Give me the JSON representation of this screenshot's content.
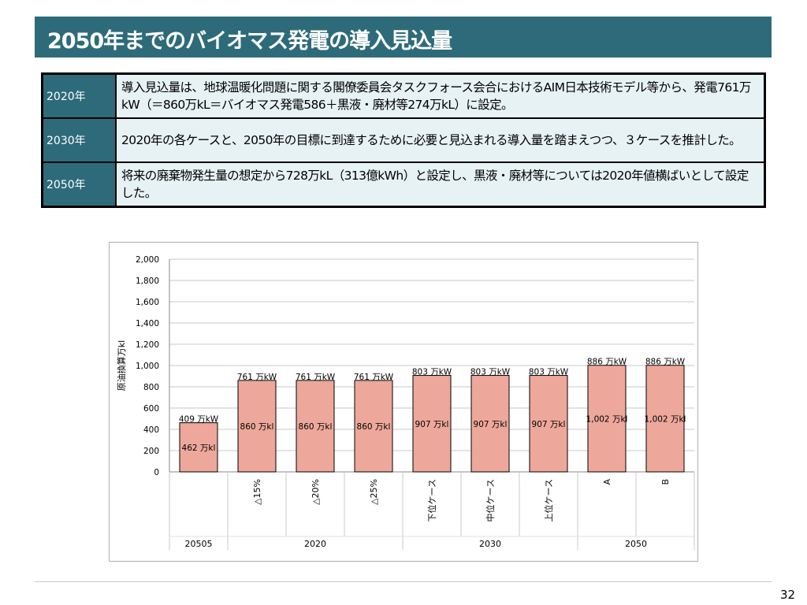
{
  "title": "2050年までのバイオマス発電の導入見込量",
  "summary": [
    {
      "year": "2020年",
      "text": "導入見込量は、地球温暖化問題に関する閣僚委員会タスクフォース会合におけるAIM日本技術モデル等から、発電761万kW（＝860万kL＝バイオマス発電586＋黒液・廃材等274万kL）に設定。"
    },
    {
      "year": "2030年",
      "text": "2020年の各ケースと、2050年の目標に到達するために必要と見込まれる導入量を踏まえつつ、３ケースを推計した。"
    },
    {
      "year": "2050年",
      "text": "将来の廃棄物発生量の想定から728万kL（313億kWh）と設定し、黒液・廃材等については2020年値横ばいとして設定した。"
    }
  ],
  "chart_data": {
    "type": "bar",
    "ylabel": "原油換算万kl",
    "ylim": [
      0,
      2000
    ],
    "yticks": [
      "2,000",
      "1,800",
      "1,600",
      "1,400",
      "1,200",
      "1,000",
      "800",
      "600",
      "400",
      "200",
      "0"
    ],
    "categories": [
      "",
      "△15%",
      "△20%",
      "△25%",
      "下位ケース",
      "中位ケース",
      "上位ケース",
      "A",
      "B"
    ],
    "groups": [
      {
        "label": "20505",
        "span": 1
      },
      {
        "label": "2020",
        "span": 3
      },
      {
        "label": "2030",
        "span": 3
      },
      {
        "label": "2050",
        "span": 2
      }
    ],
    "values": [
      462,
      860,
      860,
      860,
      907,
      907,
      907,
      1002,
      1002
    ],
    "value_labels": [
      "462 万kl",
      "860 万kl",
      "860 万kl",
      "860 万kl",
      "907 万kl",
      "907 万kl",
      "907 万kl",
      "1,002 万kl",
      "1,002 万kl"
    ],
    "kw_labels": [
      "409 万kW",
      "761 万kW",
      "761 万kW",
      "761 万kW",
      "803 万kW",
      "803 万kW",
      "803 万kW",
      "886 万kW",
      "886 万kW"
    ],
    "bar_color": "#eda89b",
    "grid": true
  },
  "page_number": "32"
}
